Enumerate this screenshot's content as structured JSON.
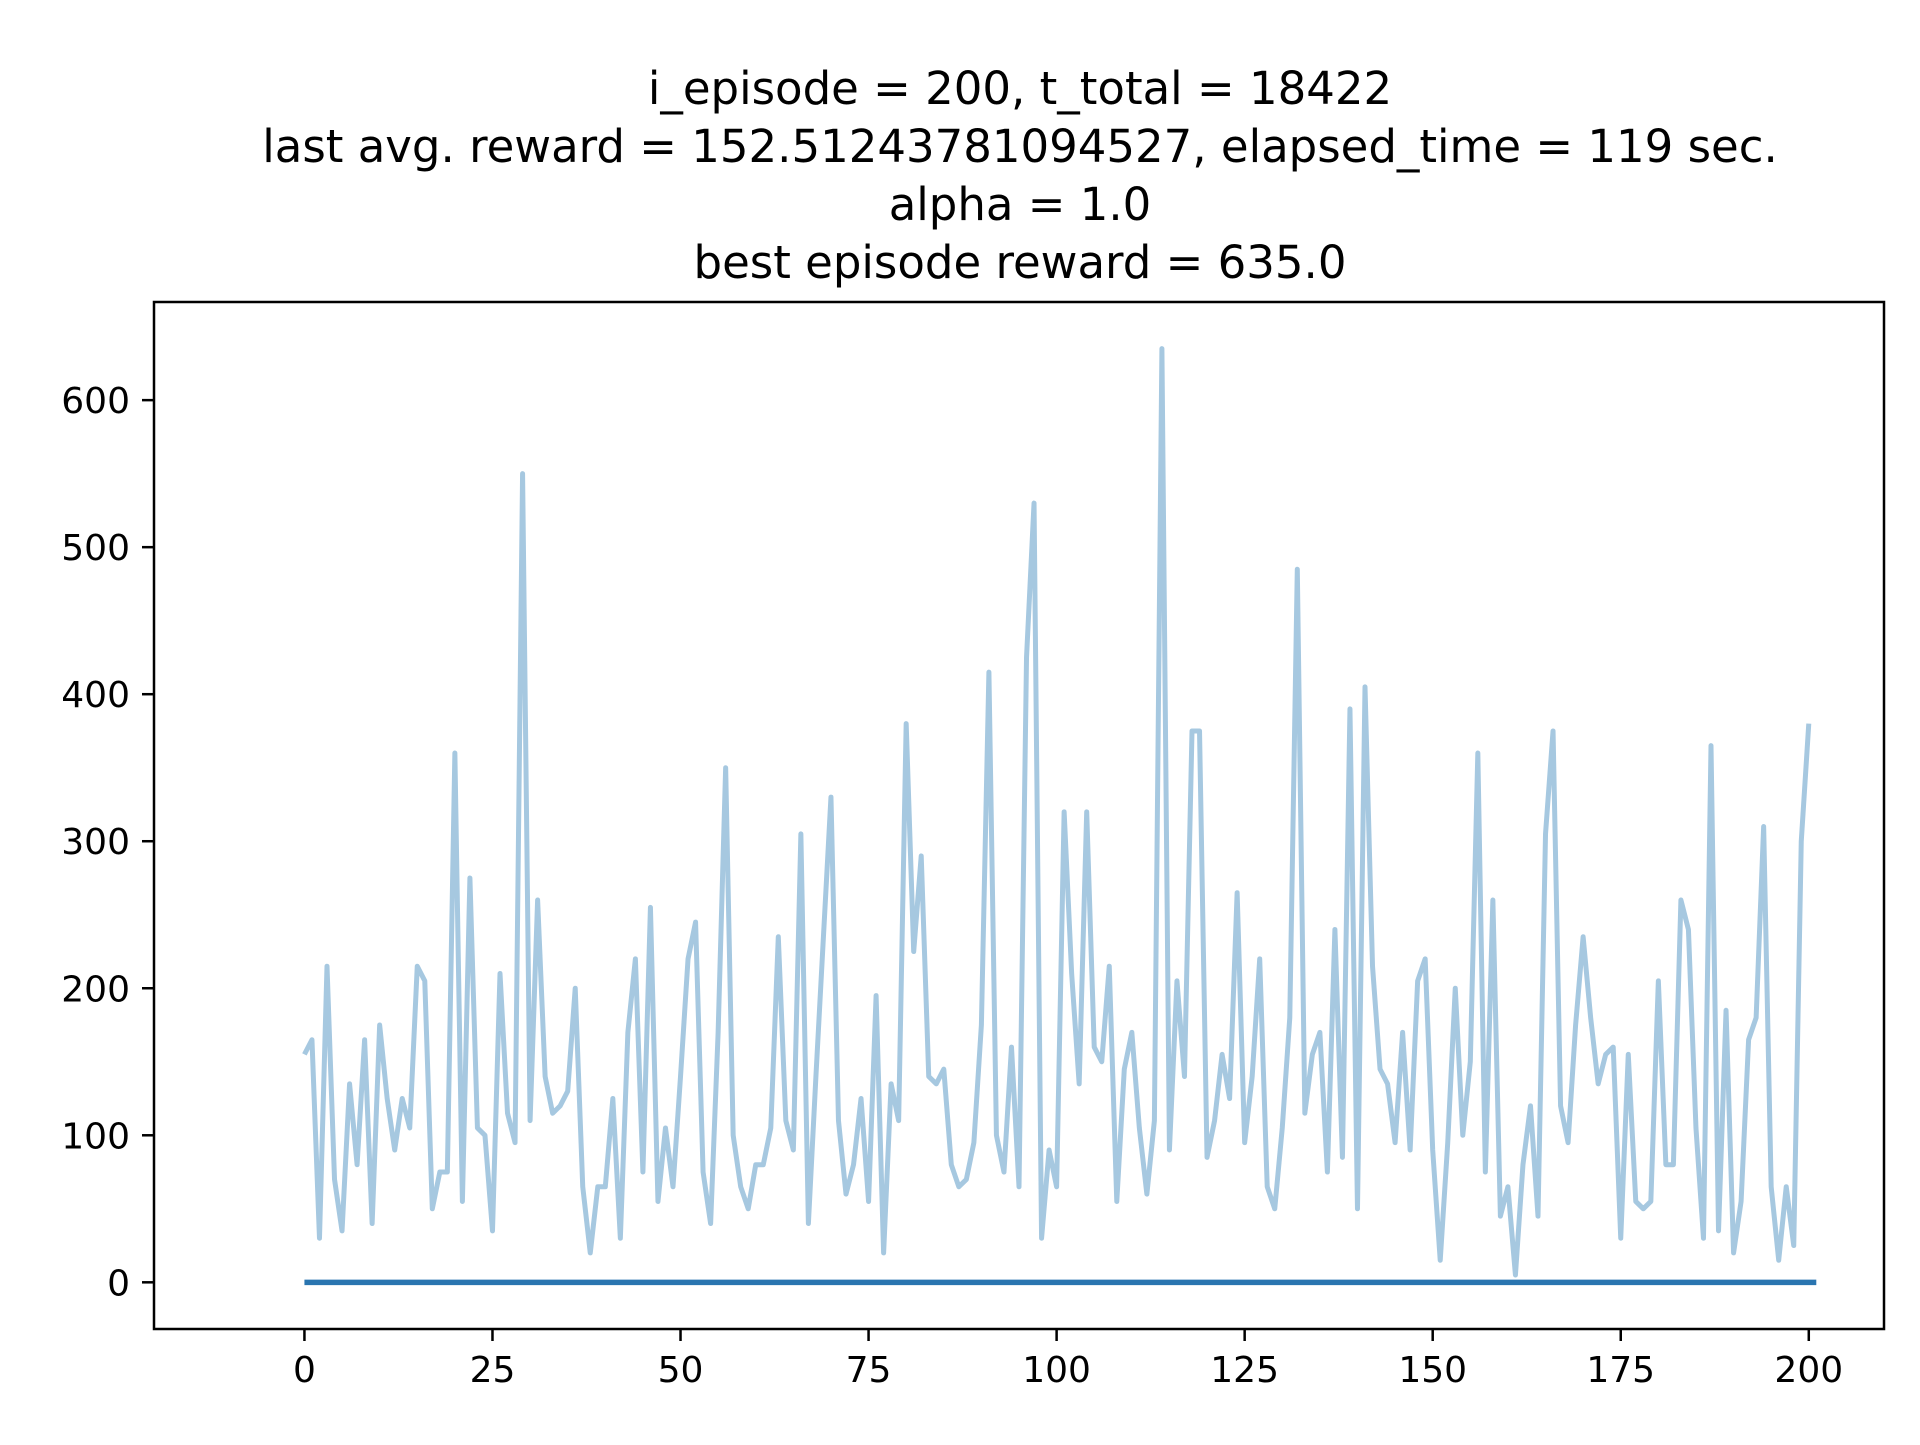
{
  "chart_data": {
    "type": "line",
    "title_lines": [
      "i_episode = 200, t_total = 18422",
      "last avg. reward = 152.51243781094527, elapsed_time = 119 sec.",
      "alpha = 1.0",
      "best episode reward = 635.0"
    ],
    "xlabel": "",
    "ylabel": "",
    "xlim": [
      -20,
      210
    ],
    "ylim": [
      -31.75,
      666.75
    ],
    "x_ticks": [
      0,
      25,
      50,
      75,
      100,
      125,
      150,
      175,
      200
    ],
    "y_ticks": [
      0,
      100,
      200,
      300,
      400,
      500,
      600
    ],
    "grid": false,
    "legend": "none",
    "series": [
      {
        "color": "#a6c8e0",
        "x_start": 0,
        "x_step": 1,
        "values": [
          155,
          165,
          30,
          215,
          70,
          35,
          135,
          80,
          165,
          40,
          175,
          125,
          90,
          125,
          105,
          215,
          205,
          50,
          75,
          75,
          360,
          55,
          275,
          105,
          100,
          35,
          210,
          115,
          95,
          550,
          110,
          260,
          140,
          115,
          120,
          130,
          200,
          65,
          20,
          65,
          65,
          125,
          30,
          170,
          220,
          75,
          255,
          55,
          105,
          65,
          140,
          220,
          245,
          75,
          40,
          170,
          350,
          100,
          65,
          50,
          80,
          80,
          105,
          235,
          110,
          90,
          305,
          40,
          140,
          235,
          330,
          110,
          60,
          80,
          125,
          55,
          195,
          20,
          135,
          110,
          380,
          225,
          290,
          140,
          135,
          145,
          80,
          65,
          70,
          95,
          175,
          415,
          100,
          75,
          160,
          65,
          425,
          530,
          30,
          90,
          65,
          320,
          210,
          135,
          320,
          160,
          150,
          215,
          55,
          145,
          170,
          105,
          60,
          110,
          635,
          90,
          205,
          140,
          375,
          375,
          85,
          110,
          155,
          125,
          265,
          95,
          140,
          220,
          65,
          50,
          105,
          180,
          485,
          115,
          155,
          170,
          75,
          240,
          85,
          390,
          50,
          405,
          215,
          145,
          135,
          95,
          170,
          90,
          205,
          220,
          90,
          15,
          95,
          200,
          100,
          150,
          360,
          75,
          260,
          45,
          65,
          5,
          80,
          120,
          45,
          305,
          375,
          120,
          95,
          175,
          235,
          180,
          135,
          155,
          160,
          30,
          155,
          55,
          50,
          55,
          205,
          80,
          80,
          260,
          240,
          105,
          30,
          365,
          35,
          185,
          20,
          55,
          165,
          180,
          310,
          65,
          15,
          65,
          25,
          300,
          380
        ]
      },
      {
        "color": "#2a75b0",
        "x": [
          0,
          201
        ],
        "values": [
          0,
          0
        ]
      }
    ]
  }
}
